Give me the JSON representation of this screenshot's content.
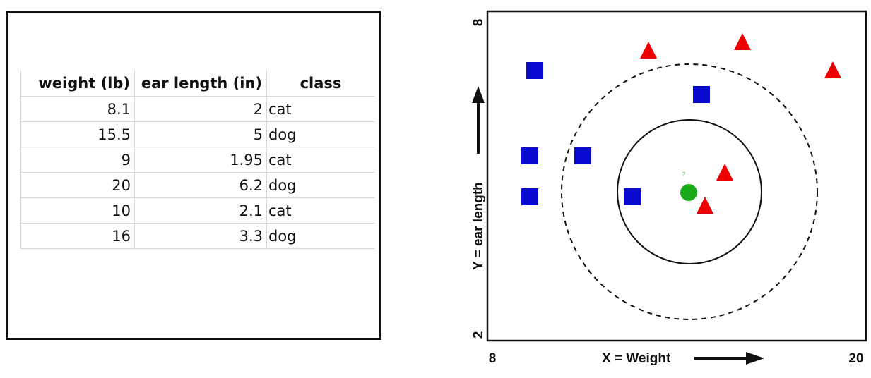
{
  "table": {
    "headers": [
      "weight (lb)",
      "ear length (in)",
      "class"
    ],
    "rows": [
      {
        "weight": "8.1",
        "ear_length": "2",
        "class": "cat"
      },
      {
        "weight": "15.5",
        "ear_length": "5",
        "class": "dog"
      },
      {
        "weight": "9",
        "ear_length": "1.95",
        "class": "cat"
      },
      {
        "weight": "20",
        "ear_length": "6.2",
        "class": "dog"
      },
      {
        "weight": "10",
        "ear_length": "2.1",
        "class": "cat"
      },
      {
        "weight": "16",
        "ear_length": "3.3",
        "class": "dog"
      }
    ]
  },
  "plot": {
    "x_axis_label": "X = Weight",
    "y_axis_label": "Y = ear length",
    "x_min_label": "8",
    "x_max_label": "20",
    "y_min_label": "2",
    "y_max_label": "8",
    "query_label": "?",
    "colors": {
      "square": "#0a0ad0",
      "triangle": "#ee0000",
      "query": "#1aaa1a",
      "ink": "#111111"
    },
    "legend_meaning": {
      "square_shape": "square-marker",
      "triangle_shape": "triangle-marker",
      "query_shape": "query-point-circle"
    }
  }
}
